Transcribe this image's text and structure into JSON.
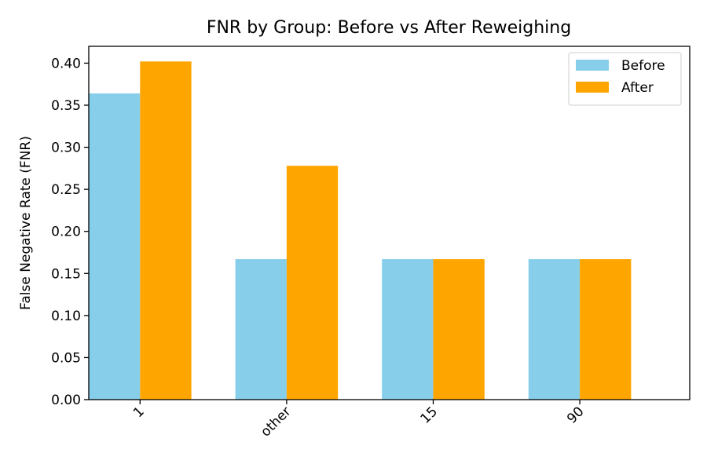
{
  "chart_data": {
    "type": "bar",
    "title": "FNR by Group: Before vs After Reweighing",
    "xlabel": "",
    "ylabel": "False Negative Rate (FNR)",
    "categories": [
      "1",
      "other",
      "15",
      "90"
    ],
    "series": [
      {
        "name": "Before",
        "color": "#87ceeb",
        "values": [
          0.364,
          0.167,
          0.167,
          0.167
        ]
      },
      {
        "name": "After",
        "color": "#ffa500",
        "values": [
          0.402,
          0.278,
          0.167,
          0.167
        ]
      }
    ],
    "ylim": [
      0,
      0.42
    ],
    "yticks": [
      "0.00",
      "0.05",
      "0.10",
      "0.15",
      "0.20",
      "0.25",
      "0.30",
      "0.35",
      "0.40"
    ],
    "grid": false,
    "legend_position": "top-right",
    "xtick_rotation_deg": 45
  }
}
